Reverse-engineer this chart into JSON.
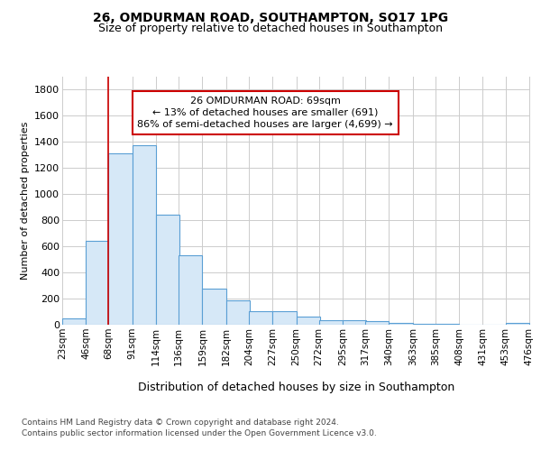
{
  "title": "26, OMDURMAN ROAD, SOUTHAMPTON, SO17 1PG",
  "subtitle": "Size of property relative to detached houses in Southampton",
  "xlabel": "Distribution of detached houses by size in Southampton",
  "ylabel": "Number of detached properties",
  "footer_line1": "Contains HM Land Registry data © Crown copyright and database right 2024.",
  "footer_line2": "Contains public sector information licensed under the Open Government Licence v3.0.",
  "bins_left": [
    23,
    46,
    68,
    91,
    114,
    136,
    159,
    182,
    204,
    227,
    250,
    272,
    295,
    317,
    340,
    363,
    385,
    408,
    431,
    453
  ],
  "bin_width": 23,
  "bar_heights": [
    50,
    640,
    1310,
    1375,
    845,
    530,
    275,
    185,
    105,
    105,
    62,
    38,
    38,
    28,
    15,
    8,
    8,
    0,
    0,
    12
  ],
  "bar_color": "#d6e8f7",
  "bar_edge_color": "#5a9fd4",
  "grid_color": "#cccccc",
  "red_line_x": 68,
  "red_line_color": "#cc0000",
  "annotation_text": "26 OMDURMAN ROAD: 69sqm\n← 13% of detached houses are smaller (691)\n86% of semi-detached houses are larger (4,699) →",
  "ylim": [
    0,
    1900
  ],
  "yticks": [
    0,
    200,
    400,
    600,
    800,
    1000,
    1200,
    1400,
    1600,
    1800
  ],
  "tick_labels": [
    "23sqm",
    "46sqm",
    "68sqm",
    "91sqm",
    "114sqm",
    "136sqm",
    "159sqm",
    "182sqm",
    "204sqm",
    "227sqm",
    "250sqm",
    "272sqm",
    "295sqm",
    "317sqm",
    "340sqm",
    "363sqm",
    "385sqm",
    "408sqm",
    "431sqm",
    "453sqm",
    "476sqm"
  ],
  "bg_color": "#ffffff",
  "title_fontsize": 10,
  "subtitle_fontsize": 9,
  "ylabel_fontsize": 8,
  "xlabel_fontsize": 9,
  "ytick_fontsize": 8,
  "xtick_fontsize": 7.5,
  "footer_fontsize": 6.5,
  "ann_fontsize": 8
}
